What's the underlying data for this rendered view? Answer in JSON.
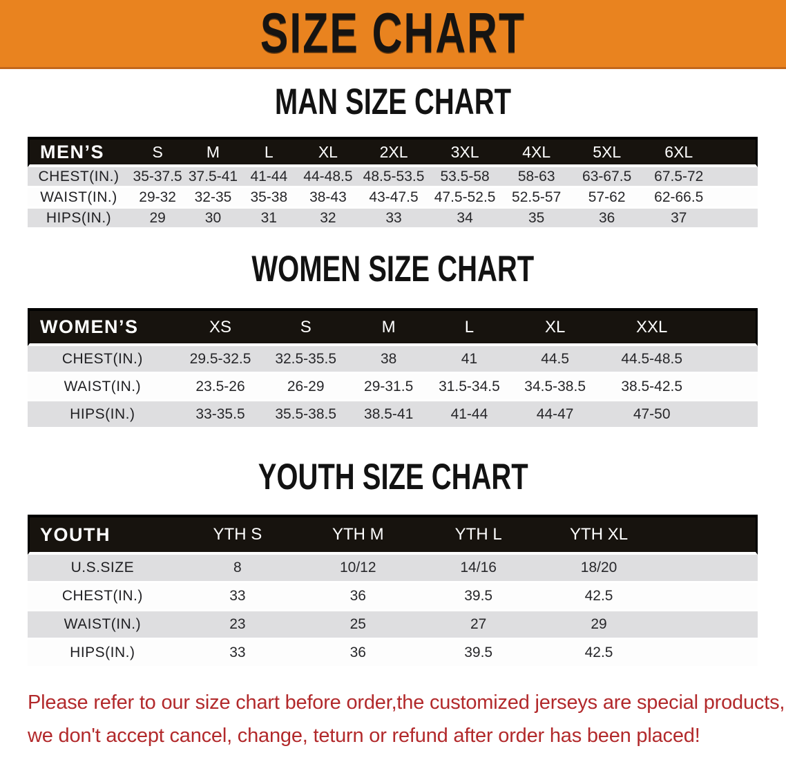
{
  "banner": {
    "title": "SIZE CHART",
    "bg_color": "#E9831F"
  },
  "colors": {
    "banner_orange": "#E9831F",
    "header_black": "#17130E",
    "row_gray": "#DEDEE0",
    "disclaimer_red": "#B2292B"
  },
  "sections": [
    {
      "heading": "MAN SIZE CHART",
      "table": {
        "label": "MEN’S",
        "columns": [
          "S",
          "M",
          "L",
          "XL",
          "2XL",
          "3XL",
          "4XL",
          "5XL",
          "6XL"
        ],
        "rows": [
          {
            "label": "CHEST(IN.)",
            "values": [
              "35-37.5",
              "37.5-41",
              "41-44",
              "44-48.5",
              "48.5-53.5",
              "53.5-58",
              "58-63",
              "63-67.5",
              "67.5-72"
            ]
          },
          {
            "label": "WAIST(IN.)",
            "values": [
              "29-32",
              "32-35",
              "35-38",
              "38-43",
              "43-47.5",
              "47.5-52.5",
              "52.5-57",
              "57-62",
              "62-66.5"
            ]
          },
          {
            "label": "HIPS(IN.)",
            "values": [
              "29",
              "30",
              "31",
              "32",
              "33",
              "34",
              "35",
              "36",
              "37"
            ]
          }
        ]
      }
    },
    {
      "heading": "WOMEN SIZE CHART",
      "table": {
        "label": "WOMEN’S",
        "columns": [
          "XS",
          "S",
          "M",
          "L",
          "XL",
          "XXL"
        ],
        "rows": [
          {
            "label": "CHEST(IN.)",
            "values": [
              "29.5-32.5",
              "32.5-35.5",
              "38",
              "41",
              "44.5",
              "44.5-48.5"
            ]
          },
          {
            "label": "WAIST(IN.)",
            "values": [
              "23.5-26",
              "26-29",
              "29-31.5",
              "31.5-34.5",
              "34.5-38.5",
              "38.5-42.5"
            ]
          },
          {
            "label": "HIPS(IN.)",
            "values": [
              "33-35.5",
              "35.5-38.5",
              "38.5-41",
              "41-44",
              "44-47",
              "47-50"
            ]
          }
        ]
      }
    },
    {
      "heading": "YOUTH SIZE CHART",
      "table": {
        "label": "YOUTH",
        "columns": [
          "YTH S",
          "YTH M",
          "YTH L",
          "YTH XL"
        ],
        "rows": [
          {
            "label": "U.S.SIZE",
            "values": [
              "8",
              "10/12",
              "14/16",
              "18/20"
            ]
          },
          {
            "label": "CHEST(IN.)",
            "values": [
              "33",
              "36",
              "39.5",
              "42.5"
            ]
          },
          {
            "label": "WAIST(IN.)",
            "values": [
              "23",
              "25",
              "27",
              "29"
            ]
          },
          {
            "label": "HIPS(IN.)",
            "values": [
              "33",
              "36",
              "39.5",
              "42.5"
            ]
          }
        ]
      }
    }
  ],
  "disclaimer": {
    "line1": "Please refer to our size chart before order,the customized jerseys are special products,",
    "line2": "we don't accept cancel, change, teturn or refund after order has been placed!"
  }
}
